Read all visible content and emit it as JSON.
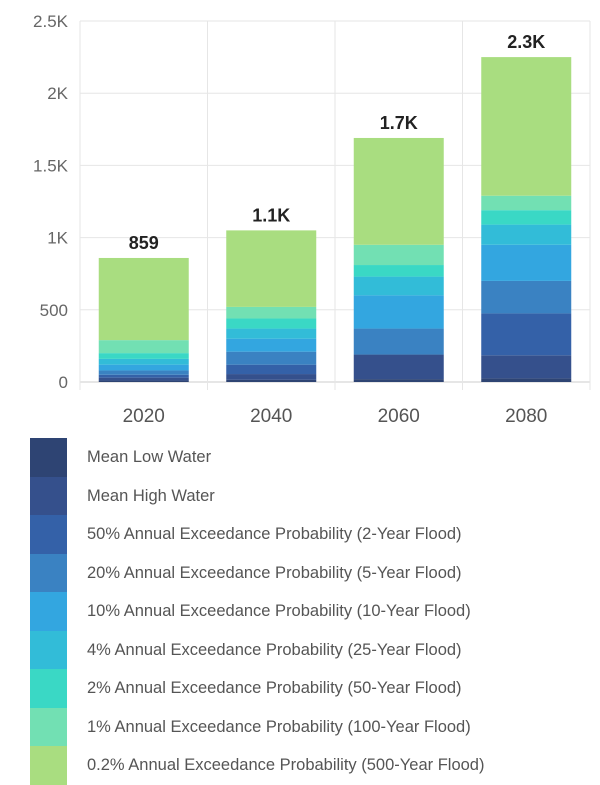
{
  "chart_data": {
    "type": "bar",
    "stacked": true,
    "title": "",
    "xlabel": "",
    "ylabel": "",
    "categories": [
      "2020",
      "2040",
      "2060",
      "2080"
    ],
    "ylim": [
      0,
      2500
    ],
    "yticks": [
      0,
      500,
      1000,
      1500,
      2000,
      2500
    ],
    "ytick_labels": [
      "0",
      "500",
      "1K",
      "1.5K",
      "2K",
      "2.5K"
    ],
    "totals": [
      859,
      1050,
      1690,
      2250
    ],
    "total_labels": [
      "859",
      "1.1K",
      "1.7K",
      "2.3K"
    ],
    "grid": true,
    "legend_position": "bottom",
    "series": [
      {
        "name": "Mean Low Water",
        "color": "#2e4473",
        "values": [
          10,
          15,
          20,
          25
        ]
      },
      {
        "name": "Mean High Water",
        "color": "#35508c",
        "values": [
          20,
          40,
          170,
          160
        ]
      },
      {
        "name": "50% Annual Exceedance Probability (2-Year Flood)",
        "color": "#3461a8",
        "values": [
          20,
          65,
          0,
          290
        ]
      },
      {
        "name": "20% Annual Exceedance Probability (5-Year Flood)",
        "color": "#3a82c2",
        "values": [
          30,
          90,
          180,
          225
        ]
      },
      {
        "name": "10% Annual Exceedance Probability (10-Year Flood)",
        "color": "#33a6e0",
        "values": [
          40,
          90,
          230,
          250
        ]
      },
      {
        "name": "4% Annual Exceedance Probability (25-Year Flood)",
        "color": "#32bcd8",
        "values": [
          40,
          70,
          130,
          140
        ]
      },
      {
        "name": "2% Annual Exceedance Probability (50-Year Flood)",
        "color": "#3ad8c5",
        "values": [
          40,
          70,
          80,
          100
        ]
      },
      {
        "name": "1% Annual Exceedance Probability (100-Year Flood)",
        "color": "#72e0b3",
        "values": [
          90,
          80,
          140,
          100
        ]
      },
      {
        "name": "0.2% Annual Exceedance Probability (500-Year Flood)",
        "color": "#a9dd80",
        "values": [
          569,
          530,
          740,
          960
        ]
      }
    ]
  }
}
